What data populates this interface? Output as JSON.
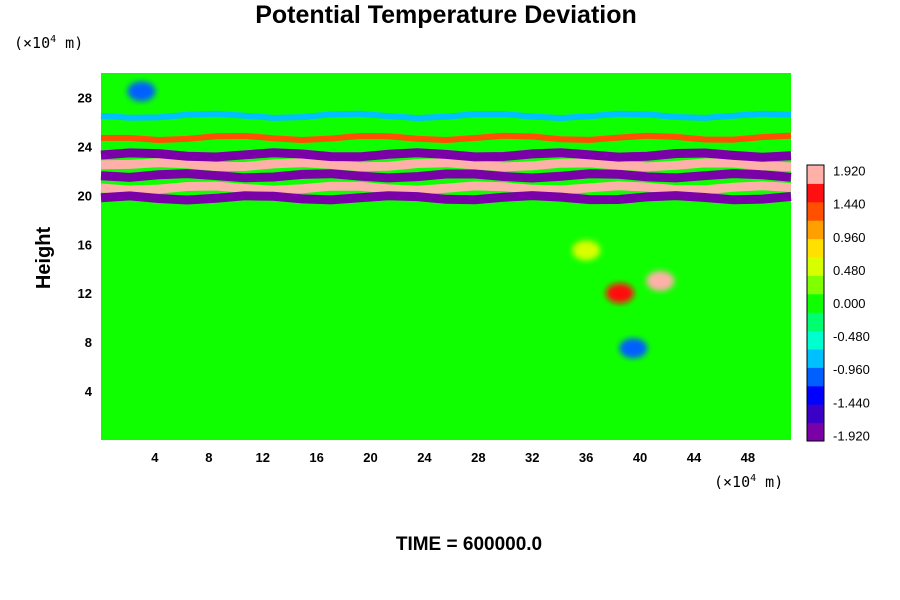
{
  "chart_data": {
    "type": "heatmap",
    "title": "Potential Temperature Deviation",
    "ylabel": "Height",
    "xlabel": "",
    "x_unit": {
      "prefix": "(×10",
      "exp": "4",
      "suffix": " m)"
    },
    "y_unit": {
      "prefix": "(×10",
      "exp": "4",
      "suffix": " m)"
    },
    "xlim": [
      0,
      51.2
    ],
    "ylim": [
      0,
      30
    ],
    "x_ticks": [
      "4",
      "8",
      "12",
      "16",
      "20",
      "24",
      "28",
      "32",
      "36",
      "40",
      "44",
      "48"
    ],
    "x_tick_values": [
      4,
      8,
      12,
      16,
      20,
      24,
      28,
      32,
      36,
      40,
      44,
      48
    ],
    "y_ticks": [
      "4",
      "8",
      "12",
      "16",
      "20",
      "24",
      "28"
    ],
    "y_tick_values": [
      4,
      8,
      12,
      16,
      20,
      24,
      28
    ],
    "colorbar": {
      "ticks": [
        "1.920",
        "1.440",
        "0.960",
        "0.480",
        "0.000",
        "-0.480",
        "-0.960",
        "-1.440",
        "-1.920"
      ],
      "tick_values": [
        1.92,
        1.44,
        0.96,
        0.48,
        0.0,
        -0.48,
        -0.96,
        -1.44,
        -1.92
      ],
      "range": [
        -2.0,
        2.0
      ],
      "colors_low_to_high": [
        "#7a00a8",
        "#3a00c8",
        "#0000ff",
        "#0060ff",
        "#00c0ff",
        "#00ffd0",
        "#00ff70",
        "#10ff00",
        "#80ff00",
        "#d8ff00",
        "#ffe000",
        "#ffa000",
        "#ff5000",
        "#ff1010",
        "#ffb0a8"
      ]
    },
    "background_value": 0.0,
    "features": [
      {
        "kind": "band",
        "y": 20.6,
        "x_range": [
          0,
          51.2
        ],
        "value": 1.92
      },
      {
        "kind": "band",
        "y": 21.6,
        "x_range": [
          0,
          51.2
        ],
        "value": -1.92
      },
      {
        "kind": "band",
        "y": 22.5,
        "x_range": [
          0,
          51.2
        ],
        "value": 1.92
      },
      {
        "kind": "band",
        "y": 23.3,
        "x_range": [
          0,
          51.2
        ],
        "value": -1.92
      },
      {
        "kind": "band",
        "y": 19.8,
        "x_range": [
          0,
          51.2
        ],
        "value": -1.92
      },
      {
        "kind": "band",
        "y": 24.7,
        "x_range": [
          0,
          51.2
        ],
        "value": 1.2
      },
      {
        "kind": "band",
        "y": 26.5,
        "x_range": [
          0,
          51.2
        ],
        "value": -0.9
      },
      {
        "kind": "blob",
        "x": 41.5,
        "y": 13.0,
        "value": 1.9
      },
      {
        "kind": "blob",
        "x": 38.5,
        "y": 12.0,
        "value": 1.5
      },
      {
        "kind": "blob",
        "x": 39.5,
        "y": 7.5,
        "value": -1.2
      },
      {
        "kind": "blob",
        "x": 3.0,
        "y": 28.5,
        "value": -1.0
      },
      {
        "kind": "blob",
        "x": 36.0,
        "y": 15.5,
        "value": 0.6
      }
    ]
  },
  "footer": {
    "time_label": "TIME = 600000.0"
  }
}
